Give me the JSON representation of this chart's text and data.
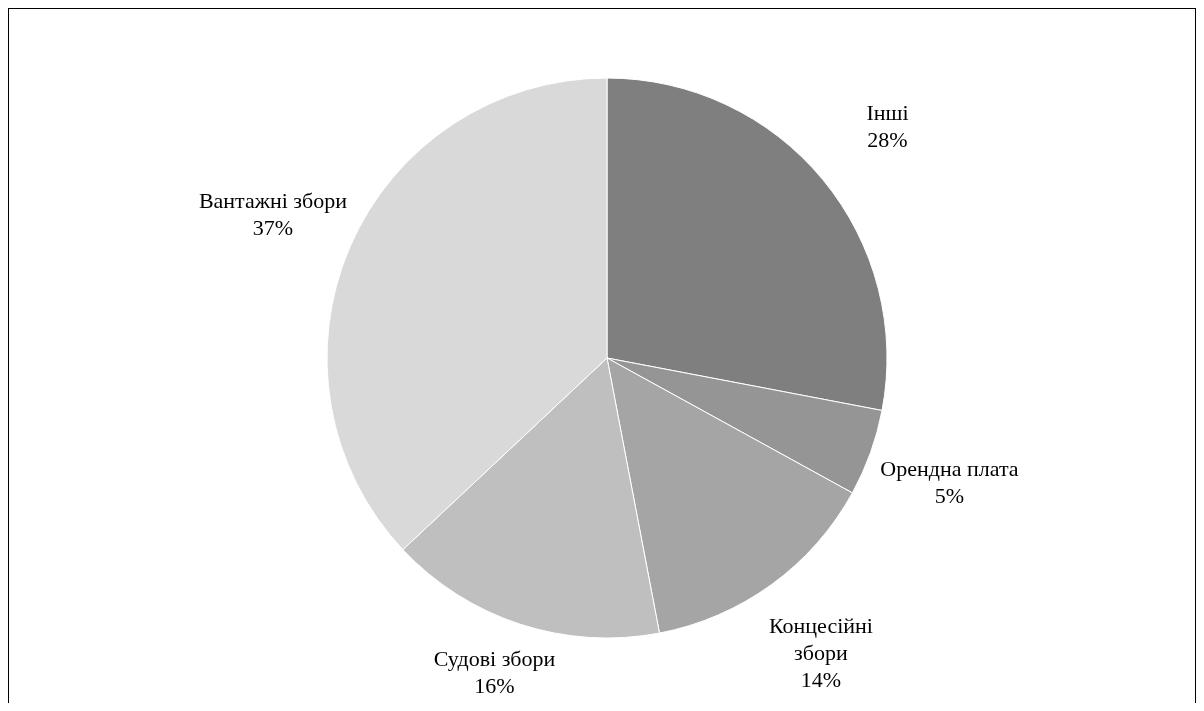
{
  "chart_data": {
    "type": "pie",
    "categories": [
      "Інші",
      "Орендна плата",
      "Концесійні збори",
      "Судові збори",
      "Вантажні збори"
    ],
    "values": [
      28,
      5,
      14,
      16,
      37
    ],
    "colors": [
      "#7f7f7f",
      "#959595",
      "#a5a5a5",
      "#bfbfbf",
      "#d9d9d9"
    ],
    "value_labels": [
      "28%",
      "5%",
      "14%",
      "16%",
      "37%"
    ]
  }
}
